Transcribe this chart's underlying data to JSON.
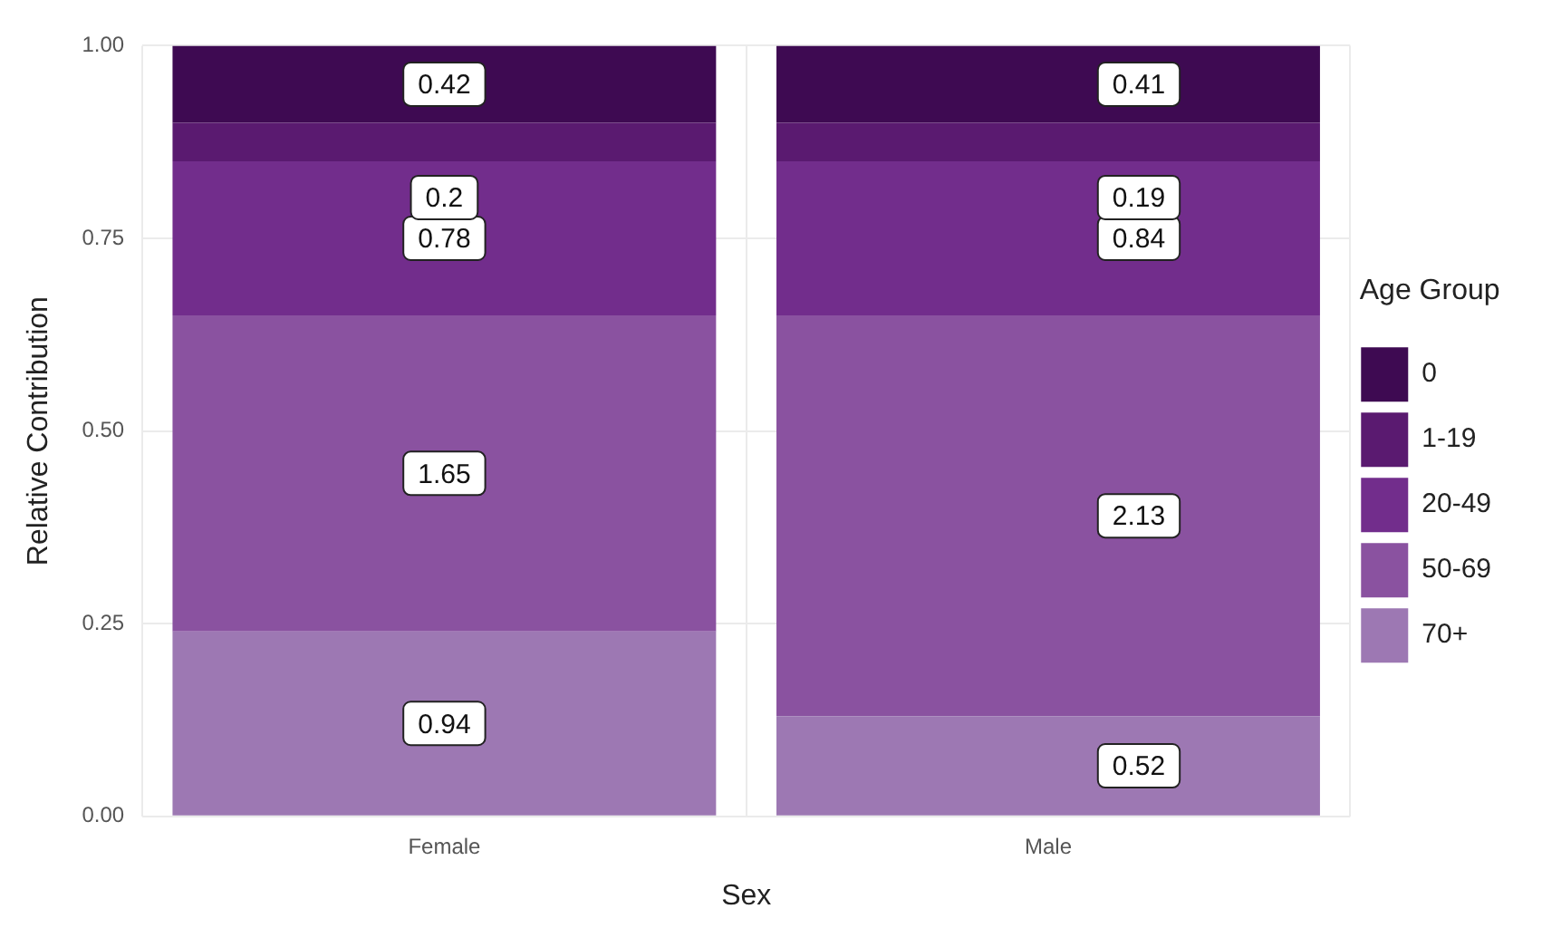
{
  "chart_data": {
    "type": "bar",
    "stacked": true,
    "xlabel": "Sex",
    "ylabel": "Relative Contribution",
    "legend_title": "Age Group",
    "legend": "right",
    "grid": true,
    "categories": [
      "Female",
      "Male"
    ],
    "series": [
      {
        "name": "70+",
        "color": "#9d78b3",
        "values": [
          0.24,
          0.13
        ]
      },
      {
        "name": "50-69",
        "color": "#8a52a0",
        "values": [
          0.41,
          0.52
        ]
      },
      {
        "name": "20-49",
        "color": "#722d8c",
        "values": [
          0.2,
          0.2
        ]
      },
      {
        "name": "1-19",
        "color": "#5a1a70",
        "values": [
          0.05,
          0.05
        ]
      },
      {
        "name": "0",
        "color": "#3e0a52",
        "values": [
          0.1,
          0.1
        ]
      }
    ],
    "annotations": [
      "0.94",
      "0.52",
      "1.65",
      "2.13",
      "0.78",
      "0.84",
      "0.2",
      "0.19",
      "0.42",
      "0.41"
    ],
    "ylim": [
      0,
      1
    ],
    "yticks": [
      {
        "value": 0,
        "label": "0.00"
      },
      {
        "value": 0.25,
        "label": "0.25"
      },
      {
        "value": 0.5,
        "label": "0.50"
      },
      {
        "value": 0.75,
        "label": "0.75"
      },
      {
        "value": 1,
        "label": "1.00"
      }
    ]
  }
}
